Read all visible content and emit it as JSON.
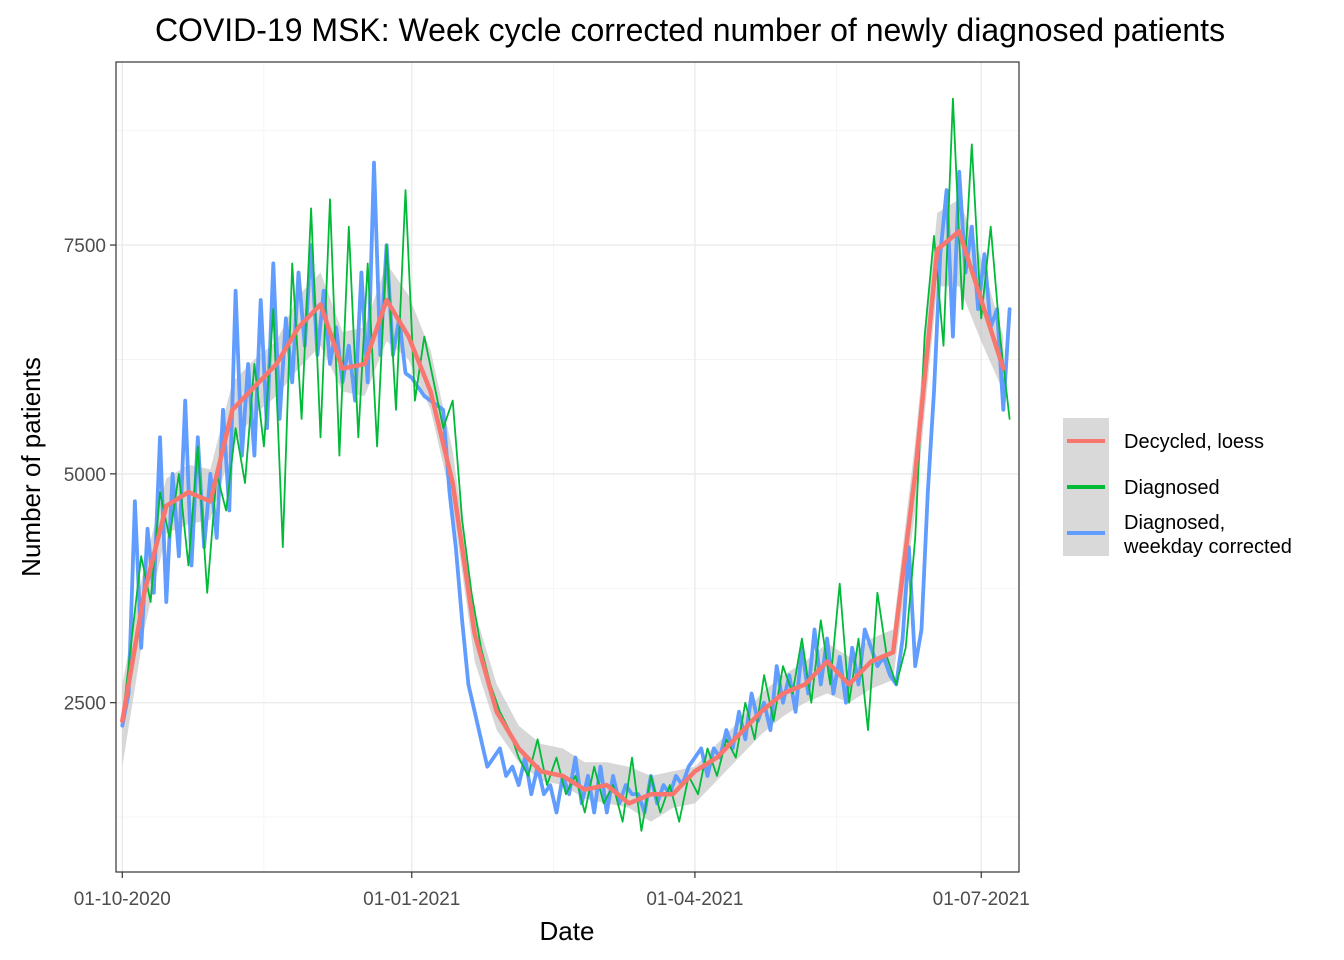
{
  "chart_data": {
    "type": "line",
    "title": "COVID-19 MSK: Week cycle corrected number of newly diagnosed patients",
    "xlabel": "Date",
    "ylabel": "Number of patients",
    "x_range": [
      "2020-09-29",
      "2021-07-13"
    ],
    "ylim": [
      650,
      9500
    ],
    "x_ticks": [
      {
        "date": "2020-10-01",
        "label": "01-10-2020"
      },
      {
        "date": "2021-01-01",
        "label": "01-01-2021"
      },
      {
        "date": "2021-04-01",
        "label": "01-04-2021"
      },
      {
        "date": "2021-07-01",
        "label": "01-07-2021"
      }
    ],
    "x_minor_dates": [
      "2020-11-15",
      "2021-02-15",
      "2021-05-16"
    ],
    "y_ticks": [
      2500,
      5000,
      7500
    ],
    "y_minor": [
      1250,
      3750,
      6250,
      8750
    ],
    "grid": true,
    "legend": {
      "placement": "right",
      "entries": [
        {
          "series": "Decycled, loess",
          "label_lines": [
            "Decycled, loess"
          ]
        },
        {
          "series": "Diagnosed",
          "label_lines": [
            "Diagnosed"
          ]
        },
        {
          "series": "Diagnosed, weekday corrected",
          "label_lines": [
            "Diagnosed,",
            "weekday corrected"
          ]
        }
      ]
    },
    "band": {
      "x": [
        "2020-10-01",
        "2020-10-08",
        "2020-10-15",
        "2020-10-22",
        "2020-10-29",
        "2020-11-05",
        "2020-11-12",
        "2020-11-19",
        "2020-11-26",
        "2020-12-03",
        "2020-12-10",
        "2020-12-17",
        "2020-12-24",
        "2020-12-31",
        "2021-01-07",
        "2021-01-14",
        "2021-01-21",
        "2021-01-28",
        "2021-02-04",
        "2021-02-11",
        "2021-02-18",
        "2021-02-25",
        "2021-03-04",
        "2021-03-11",
        "2021-03-18",
        "2021-03-25",
        "2021-04-01",
        "2021-04-08",
        "2021-04-15",
        "2021-04-22",
        "2021-04-29",
        "2021-05-06",
        "2021-05-13",
        "2021-05-20",
        "2021-05-27",
        "2021-06-03",
        "2021-06-10",
        "2021-06-17",
        "2021-06-24",
        "2021-07-01",
        "2021-07-08"
      ],
      "lower": [
        1800,
        3300,
        4350,
        4450,
        4500,
        5300,
        5650,
        5850,
        6150,
        6400,
        5900,
        5850,
        6450,
        6250,
        5700,
        4650,
        2950,
        2200,
        1850,
        1650,
        1600,
        1450,
        1400,
        1350,
        1200,
        1350,
        1400,
        1650,
        1900,
        2150,
        2350,
        2500,
        2600,
        2500,
        2650,
        2750,
        4600,
        7050,
        7050,
        6450,
        5900
      ],
      "upper": [
        2700,
        4000,
        4950,
        5100,
        5050,
        6000,
        6250,
        6450,
        6950,
        7200,
        6550,
        6600,
        7300,
        6950,
        6350,
        5250,
        3500,
        2700,
        2250,
        2050,
        2000,
        1850,
        1850,
        1800,
        1700,
        1750,
        1800,
        2050,
        2300,
        2600,
        2800,
        2950,
        3150,
        3000,
        3200,
        3300,
        5350,
        7850,
        8000,
        7350,
        6500
      ]
    },
    "series": [
      {
        "name": "Decycled, loess",
        "color": "#f8766d",
        "x": [
          "2020-10-01",
          "2020-10-08",
          "2020-10-15",
          "2020-10-22",
          "2020-10-29",
          "2020-11-05",
          "2020-11-12",
          "2020-11-19",
          "2020-11-26",
          "2020-12-03",
          "2020-12-10",
          "2020-12-17",
          "2020-12-24",
          "2020-12-31",
          "2021-01-07",
          "2021-01-14",
          "2021-01-21",
          "2021-01-28",
          "2021-02-04",
          "2021-02-11",
          "2021-02-18",
          "2021-02-25",
          "2021-03-04",
          "2021-03-11",
          "2021-03-18",
          "2021-03-25",
          "2021-04-01",
          "2021-04-08",
          "2021-04-15",
          "2021-04-22",
          "2021-04-29",
          "2021-05-06",
          "2021-05-13",
          "2021-05-20",
          "2021-05-27",
          "2021-06-03",
          "2021-06-10",
          "2021-06-17",
          "2021-06-24",
          "2021-07-01",
          "2021-07-08"
        ],
        "y": [
          2300,
          3700,
          4650,
          4800,
          4700,
          5700,
          5950,
          6200,
          6600,
          6850,
          6150,
          6200,
          6900,
          6500,
          5900,
          4900,
          3250,
          2400,
          2000,
          1750,
          1700,
          1550,
          1600,
          1400,
          1500,
          1500,
          1750,
          1900,
          2150,
          2400,
          2600,
          2700,
          2950,
          2700,
          2950,
          3050,
          5000,
          7450,
          7650,
          6900,
          6150
        ]
      },
      {
        "name": "Diagnosed",
        "color": "#00ba38",
        "x": [
          "2020-10-01",
          "2020-10-04",
          "2020-10-07",
          "2020-10-10",
          "2020-10-13",
          "2020-10-16",
          "2020-10-19",
          "2020-10-22",
          "2020-10-25",
          "2020-10-28",
          "2020-10-31",
          "2020-11-03",
          "2020-11-06",
          "2020-11-09",
          "2020-11-12",
          "2020-11-15",
          "2020-11-18",
          "2020-11-21",
          "2020-11-24",
          "2020-11-27",
          "2020-11-30",
          "2020-12-03",
          "2020-12-06",
          "2020-12-09",
          "2020-12-12",
          "2020-12-15",
          "2020-12-18",
          "2020-12-21",
          "2020-12-24",
          "2020-12-27",
          "2020-12-30",
          "2021-01-02",
          "2021-01-05",
          "2021-01-08",
          "2021-01-11",
          "2021-01-14",
          "2021-01-17",
          "2021-01-20",
          "2021-01-23",
          "2021-01-26",
          "2021-01-29",
          "2021-02-01",
          "2021-02-04",
          "2021-02-07",
          "2021-02-10",
          "2021-02-13",
          "2021-02-16",
          "2021-02-19",
          "2021-02-22",
          "2021-02-25",
          "2021-02-28",
          "2021-03-03",
          "2021-03-06",
          "2021-03-09",
          "2021-03-12",
          "2021-03-15",
          "2021-03-18",
          "2021-03-21",
          "2021-03-24",
          "2021-03-27",
          "2021-03-30",
          "2021-04-02",
          "2021-04-05",
          "2021-04-08",
          "2021-04-11",
          "2021-04-14",
          "2021-04-17",
          "2021-04-20",
          "2021-04-23",
          "2021-04-26",
          "2021-04-29",
          "2021-05-02",
          "2021-05-05",
          "2021-05-08",
          "2021-05-11",
          "2021-05-14",
          "2021-05-17",
          "2021-05-20",
          "2021-05-23",
          "2021-05-26",
          "2021-05-29",
          "2021-06-01",
          "2021-06-04",
          "2021-06-07",
          "2021-06-10",
          "2021-06-13",
          "2021-06-16",
          "2021-06-19",
          "2021-06-22",
          "2021-06-25",
          "2021-06-28",
          "2021-07-01",
          "2021-07-04",
          "2021-07-07",
          "2021-07-10"
        ],
        "y": [
          2300,
          3200,
          4100,
          3600,
          4800,
          4300,
          5000,
          4000,
          5300,
          3700,
          5000,
          4600,
          5500,
          4900,
          6200,
          5300,
          6800,
          4200,
          7300,
          5600,
          7900,
          5400,
          8000,
          5200,
          7700,
          5400,
          7300,
          5300,
          7500,
          5700,
          8100,
          5800,
          6500,
          6000,
          5500,
          5800,
          4500,
          3700,
          3100,
          2700,
          2400,
          2200,
          1900,
          1700,
          2100,
          1600,
          1900,
          1500,
          1700,
          1300,
          1800,
          1400,
          1600,
          1200,
          1900,
          1100,
          1700,
          1300,
          1600,
          1200,
          1700,
          1500,
          2000,
          1700,
          2100,
          1900,
          2500,
          2100,
          2800,
          2300,
          2900,
          2600,
          3200,
          2500,
          3400,
          2700,
          3800,
          2500,
          3200,
          2200,
          3700,
          3000,
          2700,
          3100,
          4300,
          6500,
          7600,
          6400,
          9100,
          6800,
          8600,
          6700,
          7700,
          6500,
          5600
        ]
      },
      {
        "name": "Diagnosed, weekday corrected",
        "color": "#619cff",
        "x": [
          "2020-10-01",
          "2020-10-03",
          "2020-10-05",
          "2020-10-07",
          "2020-10-09",
          "2020-10-11",
          "2020-10-13",
          "2020-10-15",
          "2020-10-17",
          "2020-10-19",
          "2020-10-21",
          "2020-10-23",
          "2020-10-25",
          "2020-10-27",
          "2020-10-29",
          "2020-10-31",
          "2020-11-02",
          "2020-11-04",
          "2020-11-06",
          "2020-11-08",
          "2020-11-10",
          "2020-11-12",
          "2020-11-14",
          "2020-11-16",
          "2020-11-18",
          "2020-11-20",
          "2020-11-22",
          "2020-11-24",
          "2020-11-26",
          "2020-11-28",
          "2020-11-30",
          "2020-12-02",
          "2020-12-04",
          "2020-12-06",
          "2020-12-08",
          "2020-12-10",
          "2020-12-12",
          "2020-12-14",
          "2020-12-16",
          "2020-12-18",
          "2020-12-20",
          "2020-12-22",
          "2020-12-24",
          "2020-12-26",
          "2020-12-28",
          "2020-12-30",
          "2021-01-01",
          "2021-01-03",
          "2021-01-05",
          "2021-01-07",
          "2021-01-09",
          "2021-01-11",
          "2021-01-13",
          "2021-01-15",
          "2021-01-17",
          "2021-01-19",
          "2021-01-21",
          "2021-01-23",
          "2021-01-25",
          "2021-01-27",
          "2021-01-29",
          "2021-01-31",
          "2021-02-02",
          "2021-02-04",
          "2021-02-06",
          "2021-02-08",
          "2021-02-10",
          "2021-02-12",
          "2021-02-14",
          "2021-02-16",
          "2021-02-18",
          "2021-02-20",
          "2021-02-22",
          "2021-02-24",
          "2021-02-26",
          "2021-02-28",
          "2021-03-02",
          "2021-03-04",
          "2021-03-06",
          "2021-03-08",
          "2021-03-10",
          "2021-03-12",
          "2021-03-14",
          "2021-03-16",
          "2021-03-18",
          "2021-03-20",
          "2021-03-22",
          "2021-03-24",
          "2021-03-26",
          "2021-03-28",
          "2021-03-30",
          "2021-04-01",
          "2021-04-03",
          "2021-04-05",
          "2021-04-07",
          "2021-04-09",
          "2021-04-11",
          "2021-04-13",
          "2021-04-15",
          "2021-04-17",
          "2021-04-19",
          "2021-04-21",
          "2021-04-23",
          "2021-04-25",
          "2021-04-27",
          "2021-04-29",
          "2021-05-01",
          "2021-05-03",
          "2021-05-05",
          "2021-05-07",
          "2021-05-09",
          "2021-05-11",
          "2021-05-13",
          "2021-05-15",
          "2021-05-17",
          "2021-05-19",
          "2021-05-21",
          "2021-05-23",
          "2021-05-25",
          "2021-05-27",
          "2021-05-29",
          "2021-05-31",
          "2021-06-02",
          "2021-06-04",
          "2021-06-06",
          "2021-06-08",
          "2021-06-10",
          "2021-06-12",
          "2021-06-14",
          "2021-06-16",
          "2021-06-18",
          "2021-06-20",
          "2021-06-22",
          "2021-06-24",
          "2021-06-26",
          "2021-06-28",
          "2021-06-30",
          "2021-07-02",
          "2021-07-04",
          "2021-07-06",
          "2021-07-08",
          "2021-07-10"
        ],
        "y": [
          2250,
          2600,
          4700,
          3100,
          4400,
          3700,
          5400,
          3600,
          5000,
          4100,
          5800,
          4000,
          5400,
          4200,
          5000,
          4300,
          5700,
          4600,
          7000,
          5200,
          6200,
          5200,
          6900,
          5500,
          7300,
          5600,
          6700,
          6000,
          7200,
          6400,
          7500,
          6300,
          7000,
          6200,
          6600,
          6000,
          6400,
          5800,
          7200,
          6000,
          8400,
          6300,
          7500,
          6300,
          6700,
          6100,
          6050,
          5950,
          5850,
          5800,
          5750,
          5700,
          4800,
          4200,
          3400,
          2700,
          2400,
          2100,
          1800,
          1900,
          2000,
          1700,
          1800,
          1600,
          1900,
          1500,
          1800,
          1500,
          1600,
          1300,
          1700,
          1500,
          1900,
          1400,
          1700,
          1300,
          1800,
          1300,
          1700,
          1400,
          1600,
          1500,
          1500,
          1300,
          1700,
          1400,
          1600,
          1500,
          1700,
          1600,
          1800,
          1900,
          2000,
          1700,
          2000,
          1900,
          2200,
          2000,
          2400,
          2100,
          2600,
          2300,
          2500,
          2200,
          2900,
          2500,
          2800,
          2400,
          3100,
          2600,
          3300,
          2700,
          3200,
          2600,
          3000,
          2500,
          3100,
          2700,
          3300,
          3100,
          2900,
          3000,
          2800,
          2700,
          3200,
          4200,
          2900,
          3300,
          4800,
          5900,
          7400,
          8100,
          6500,
          8300,
          7200,
          7700,
          6800,
          7400,
          6600,
          6800,
          5700,
          6800
        ]
      }
    ]
  }
}
